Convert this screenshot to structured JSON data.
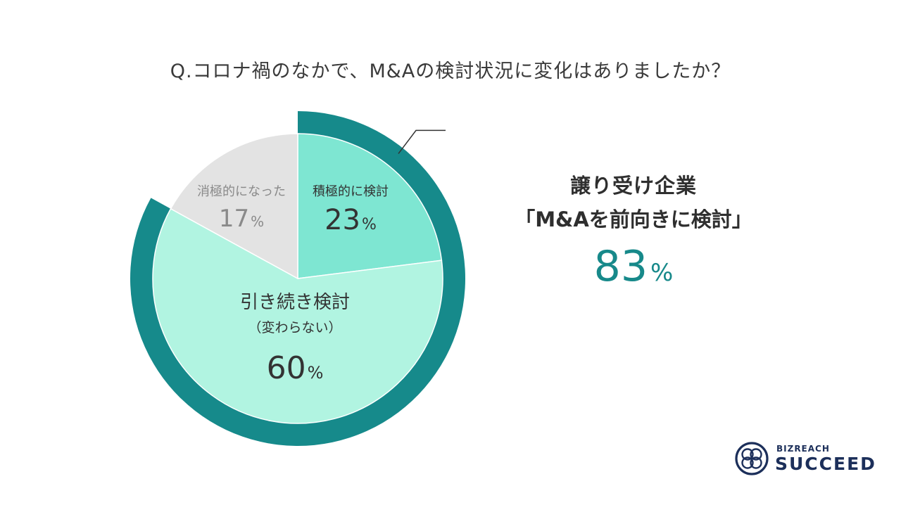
{
  "title": "Q.コロナ禍のなかで、M&Aの検討状況に変化はありましたか？",
  "callout": {
    "line1": "譲り受け企業",
    "line2": "「M&Aを前向きに検討」",
    "value": "83",
    "unit": "%"
  },
  "logo": {
    "top": "BIZREACH",
    "bottom": "SUCCEED"
  },
  "colors": {
    "ring": "#168a8b",
    "positive": "#7ee6d2",
    "continue": "#b1f4e1",
    "negative": "#e3e3e3",
    "logo": "#1c2f5a"
  },
  "chart_data": {
    "type": "pie",
    "title": "Q.コロナ禍のなかで、M&Aの検討状況に変化はありましたか？",
    "slices": [
      {
        "label": "積極的に検討",
        "value": 23,
        "color": "#7ee6d2"
      },
      {
        "label": "引き続き検討",
        "sublabel": "（変わらない）",
        "value": 60,
        "color": "#b1f4e1"
      },
      {
        "label": "消極的になった",
        "value": 17,
        "color": "#e3e3e3"
      }
    ],
    "highlight": {
      "label": "「M&Aを前向きに検討」",
      "value": 83,
      "includes": [
        "積極的に検討",
        "引き続き検討"
      ]
    },
    "unit": "%"
  }
}
